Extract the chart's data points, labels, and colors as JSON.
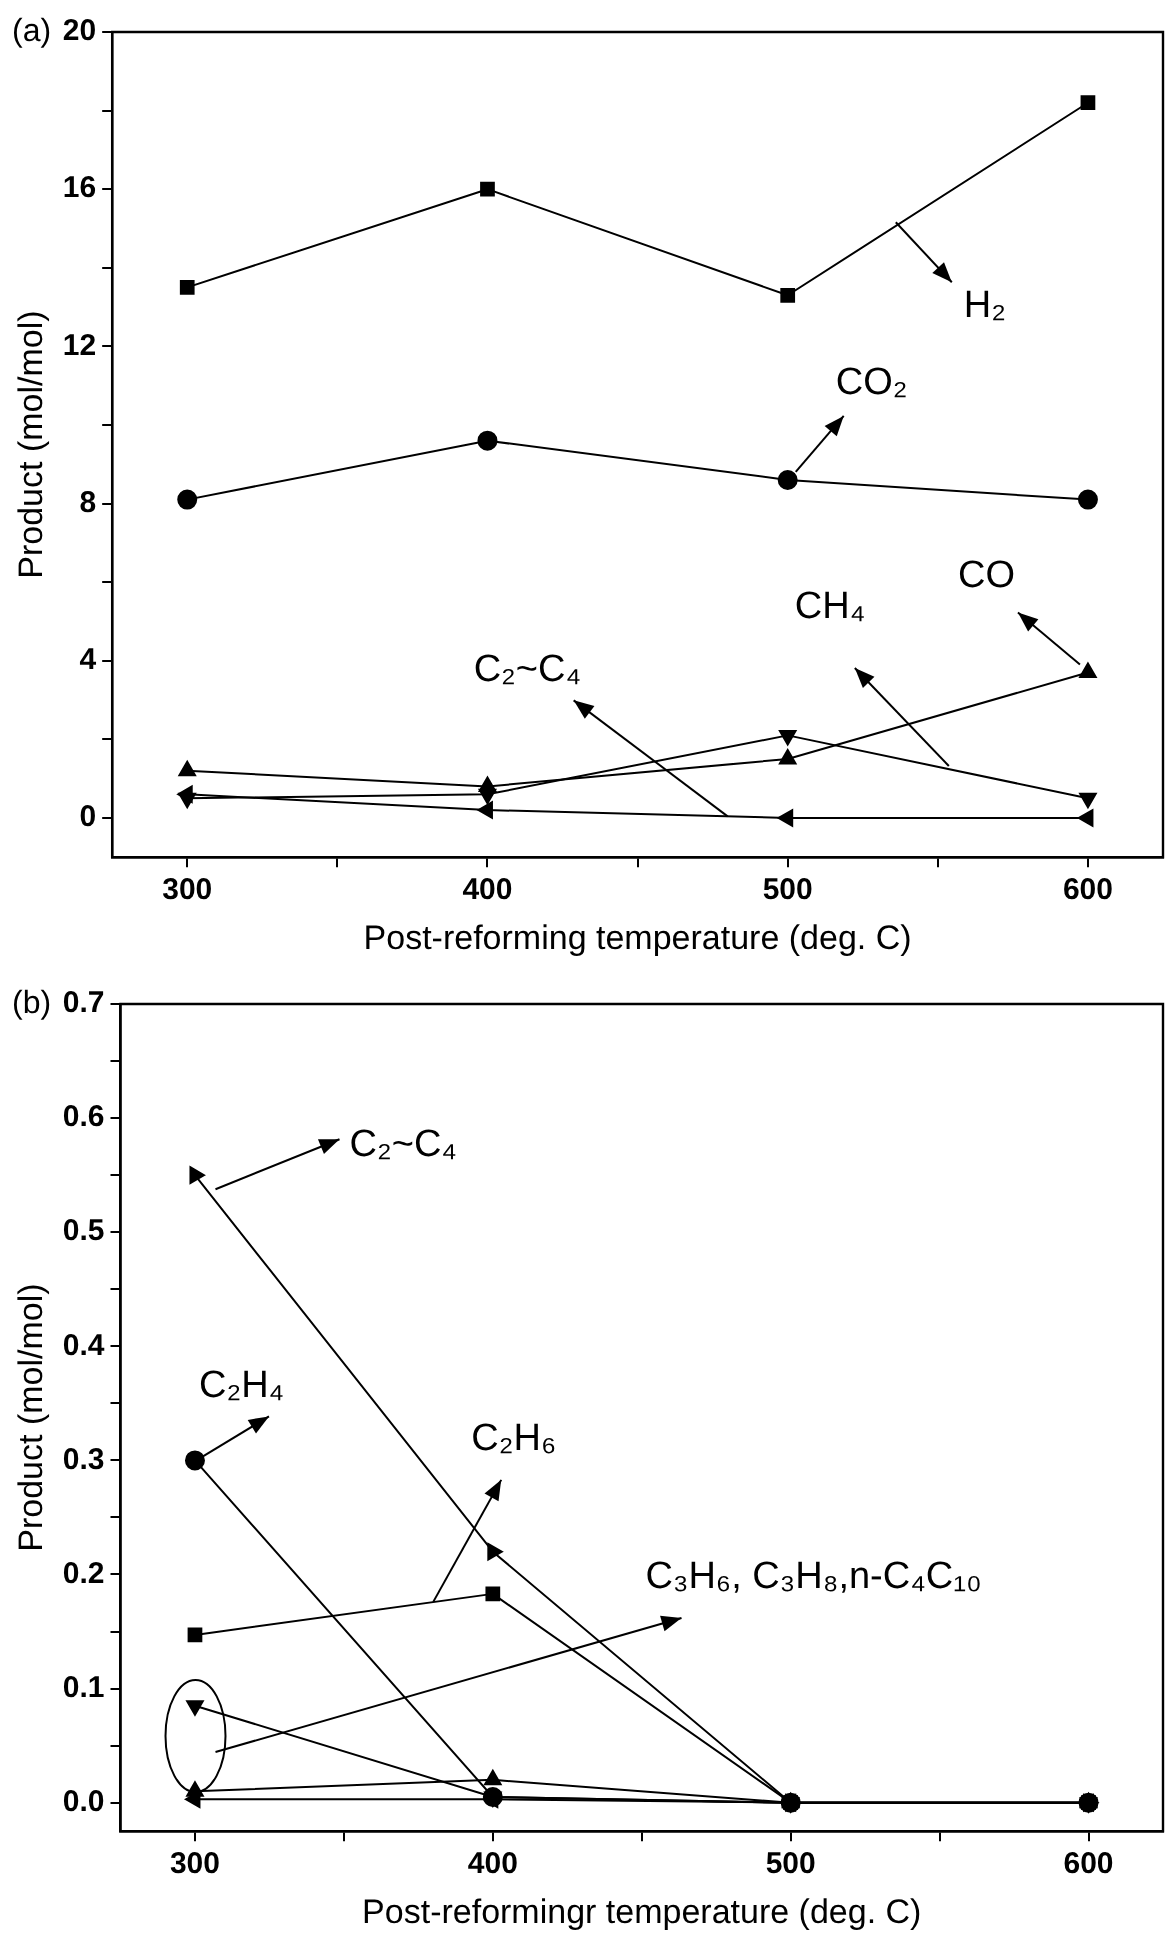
{
  "chart_data": [
    {
      "type": "line",
      "title": "(a)",
      "xlabel": "Post-reforming temperature (deg. C)",
      "ylabel": "Product (mol/mol)",
      "x": [
        300,
        400,
        500,
        600
      ],
      "series": [
        {
          "color": "#000000",
          "marker": "square",
          "values": [
            13.5,
            16,
            13.3,
            18.2
          ]
        },
        {
          "color": "#000000",
          "marker": "circle",
          "values": [
            8.1,
            9.6,
            8.6,
            8.1
          ]
        },
        {
          "color": "#000000",
          "marker": "triangle",
          "values": [
            1.2,
            0.8,
            1.5,
            3.7
          ]
        },
        {
          "color": "#000000",
          "marker": "triangle-down",
          "values": [
            0.5,
            0.6,
            2.1,
            0.5
          ]
        },
        {
          "color": "#000000",
          "marker": "triangle-left",
          "values": [
            0.6,
            0.2,
            0,
            0
          ]
        }
      ],
      "xlim": [
        275,
        625
      ],
      "xticks": [
        300,
        {
          "value": 350,
          "label": null
        },
        400,
        {
          "value": 450,
          "label": null
        },
        500,
        {
          "value": 550,
          "label": null
        },
        600
      ],
      "ylim": [
        -1,
        20
      ],
      "yticks": [
        0,
        {
          "value": 2,
          "label": null
        },
        4,
        {
          "value": 6,
          "label": null
        },
        8,
        {
          "value": 10,
          "label": null
        },
        12,
        {
          "value": 14,
          "label": null
        },
        16,
        {
          "value": 18,
          "label": null
        },
        20
      ],
      "grid": false,
      "legend": false,
      "line_style": "solid",
      "annotations": [
        {
          "text": "H₂",
          "x": 540,
          "y": 15.26
        },
        {
          "text": "CO₂",
          "x": 500,
          "y": 8.6
        },
        {
          "text": "CO",
          "x": 600,
          "y": 3.7
        },
        {
          "text": "CH₄",
          "x": 555,
          "y": 1.22
        },
        {
          "text": "C₂~C₄",
          "x": 480,
          "y": 0.04
        }
      ]
    },
    {
      "type": "line",
      "title": "(b)",
      "xlabel": "Post-reformingr temperature (deg. C)",
      "ylabel": "Product (mol/mol)",
      "x": [
        300,
        400,
        500,
        600
      ],
      "series": [
        {
          "color": "#000000",
          "marker": "square",
          "values": [
            0.147,
            0.183,
            0,
            0
          ]
        },
        {
          "color": "#000000",
          "marker": "circle",
          "values": [
            0.3,
            0.005,
            0,
            0
          ]
        },
        {
          "color": "#000000",
          "marker": "triangle-right",
          "values": [
            0.55,
            0.22,
            0,
            0
          ]
        },
        {
          "color": "#000000",
          "marker": "triangle-down",
          "values": [
            0.085,
            0.005,
            0,
            0
          ]
        },
        {
          "color": "#000000",
          "marker": "triangle",
          "values": [
            0.01,
            0.02,
            0,
            0
          ]
        },
        {
          "color": "#000000",
          "marker": "triangle-left",
          "values": [
            0.003,
            0.003,
            0,
            0
          ]
        }
      ],
      "xlim": [
        275,
        625
      ],
      "xticks": [
        300,
        {
          "value": 350,
          "label": null
        },
        400,
        {
          "value": 450,
          "label": null
        },
        500,
        {
          "value": 550,
          "label": null
        },
        600
      ],
      "ylim": [
        -0.025,
        0.7
      ],
      "yticks": [
        {
          "value": 0,
          "label": "0.0"
        },
        {
          "value": 0.05,
          "label": null
        },
        0.1,
        {
          "value": 0.15,
          "label": null
        },
        0.2,
        {
          "value": 0.25,
          "label": null
        },
        0.3,
        {
          "value": 0.35,
          "label": null
        },
        0.4,
        {
          "value": 0.45,
          "label": null
        },
        0.5,
        {
          "value": 0.55,
          "label": null
        },
        0.6,
        {
          "value": 0.65,
          "label": null
        },
        0.7
      ],
      "grid": false,
      "legend": false,
      "line_style": "solid",
      "annotations": [
        "C₂~C₄",
        {
          "text": "C₂H₄",
          "x": 300,
          "y": 0.3
        },
        {
          "text": "C₂H₆",
          "x": 380,
          "y": 0.176
        },
        "C₃H₆, C₃H₈,n-C₄C₁₀"
      ]
    }
  ]
}
